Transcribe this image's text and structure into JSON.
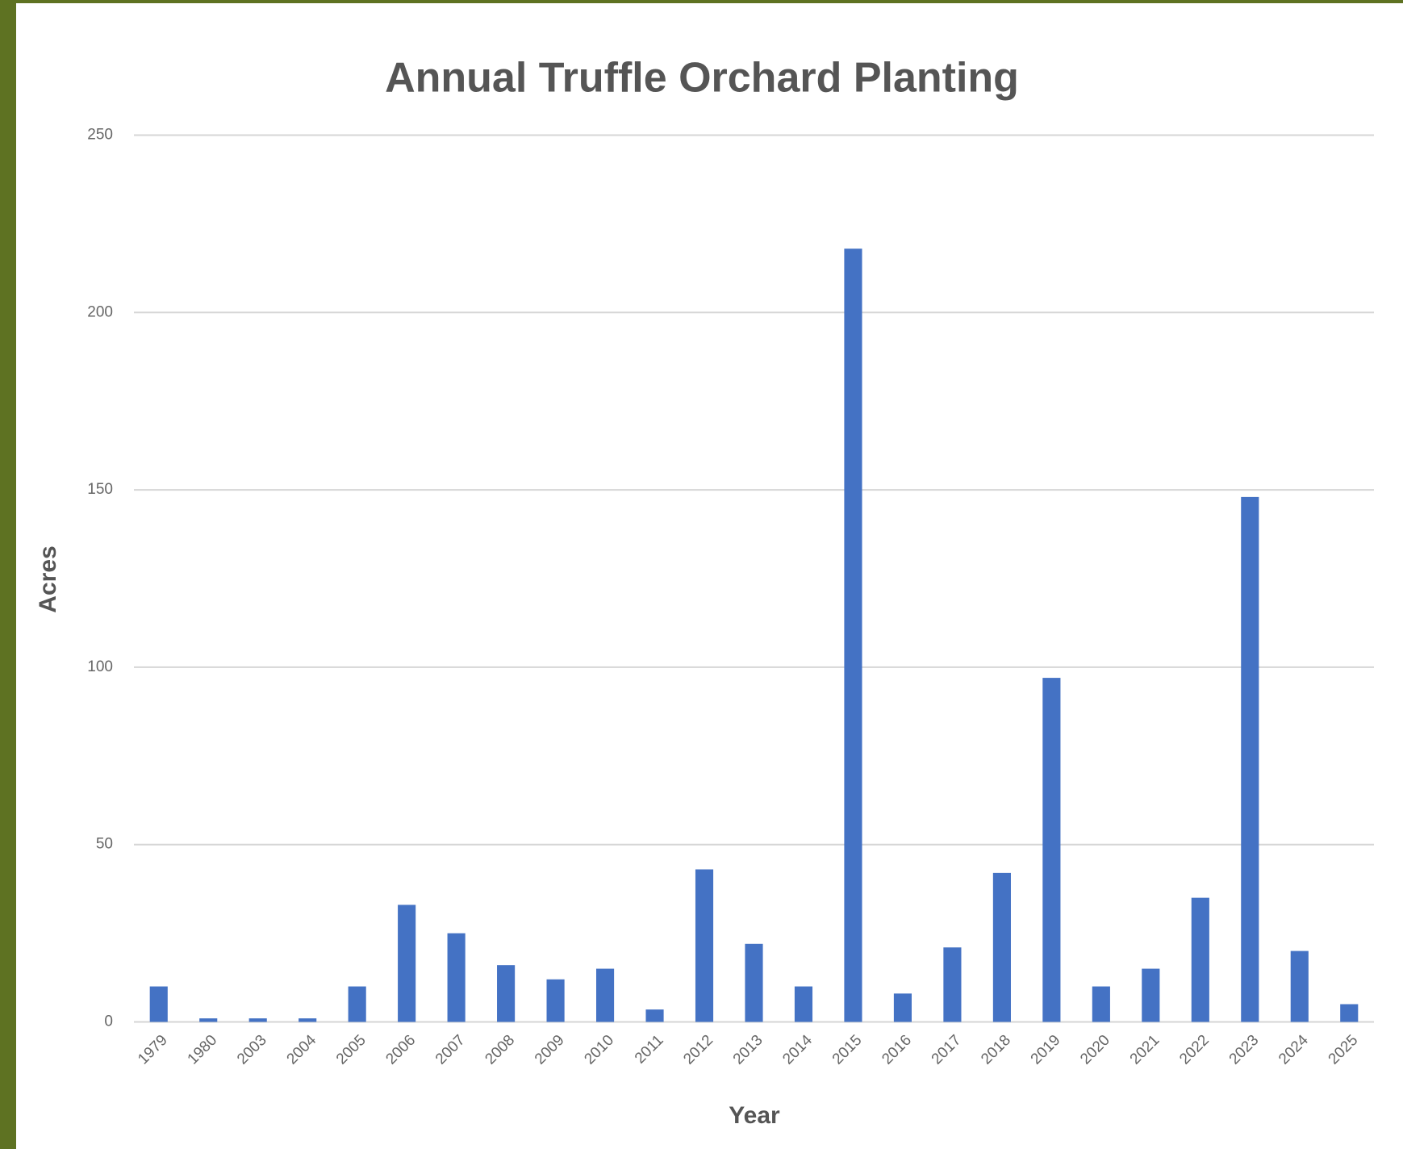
{
  "chart_data": {
    "type": "bar",
    "title": "Annual Truffle Orchard Planting",
    "x_label": "Year",
    "y_label": "Acres",
    "categories": [
      "1979",
      "1980",
      "2003",
      "2004",
      "2005",
      "2006",
      "2007",
      "2008",
      "2009",
      "2010",
      "2011",
      "2012",
      "2013",
      "2014",
      "2015",
      "2016",
      "2017",
      "2018",
      "2019",
      "2020",
      "2021",
      "2022",
      "2023",
      "2024",
      "2025"
    ],
    "values": [
      10,
      1,
      1,
      1,
      10,
      33,
      25,
      16,
      12,
      15,
      3.5,
      43,
      22,
      10,
      218,
      8,
      21,
      42,
      97,
      10,
      15,
      35,
      148,
      20,
      5
    ],
    "color": "#4472c4",
    "ylim": [
      0,
      250
    ],
    "yticks": [
      0,
      50,
      100,
      150,
      200,
      250
    ],
    "grid": true
  }
}
